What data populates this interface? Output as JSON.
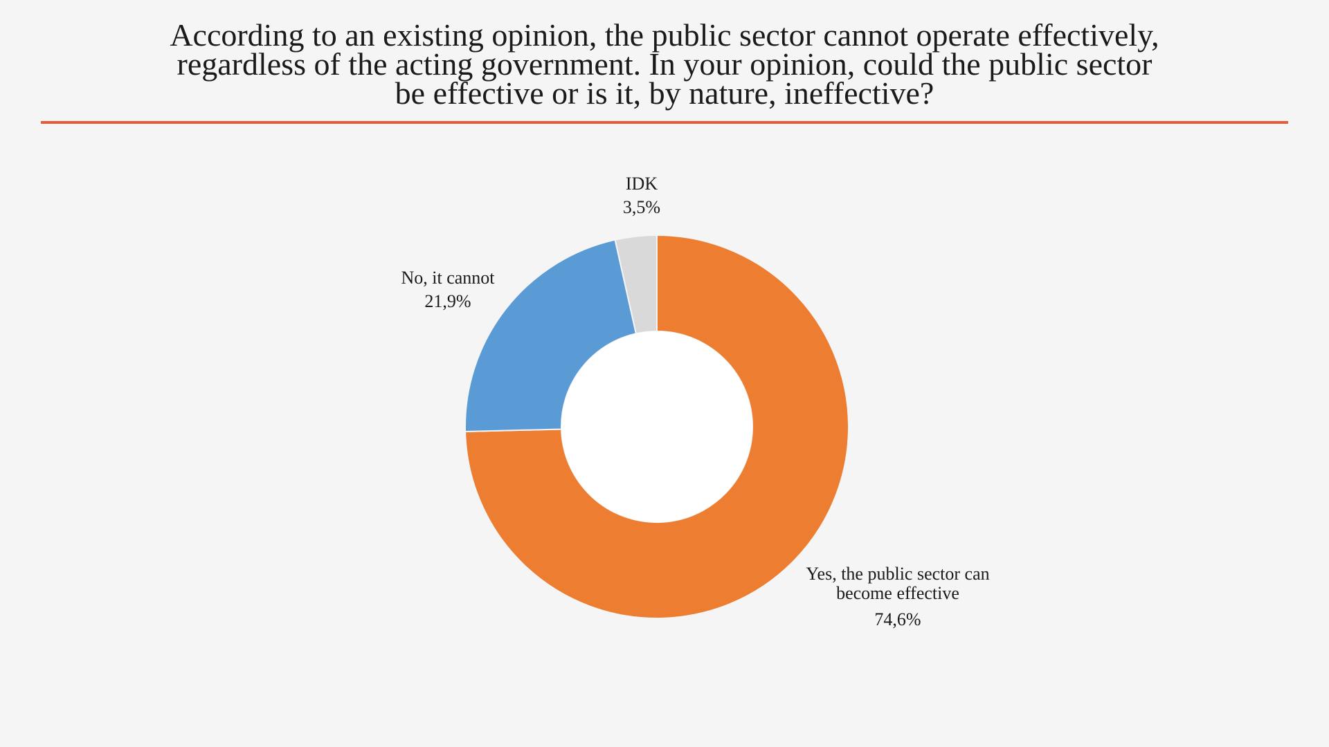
{
  "chart_data": {
    "type": "pie",
    "donut": true,
    "title_lines": [
      "According to an existing opinion, the public sector cannot operate effectively,",
      "regardless of the acting government. In your opinion, could the public sector",
      "be effective or is it, by nature, ineffective?"
    ],
    "slices": [
      {
        "name_lines": [
          "Yes, the public sector can",
          "become effective"
        ],
        "value": 74.6,
        "value_label": "74,6%",
        "color": "#ed7d31"
      },
      {
        "name_lines": [
          "No, it cannot"
        ],
        "value": 21.9,
        "value_label": "21,9%",
        "color": "#5b9bd5"
      },
      {
        "name_lines": [
          "IDK"
        ],
        "value": 3.5,
        "value_label": "3,5%",
        "color": "#d9d9d9"
      }
    ],
    "start_angle_deg": 0,
    "direction": "clockwise",
    "accent_color": "#e55b3c"
  }
}
